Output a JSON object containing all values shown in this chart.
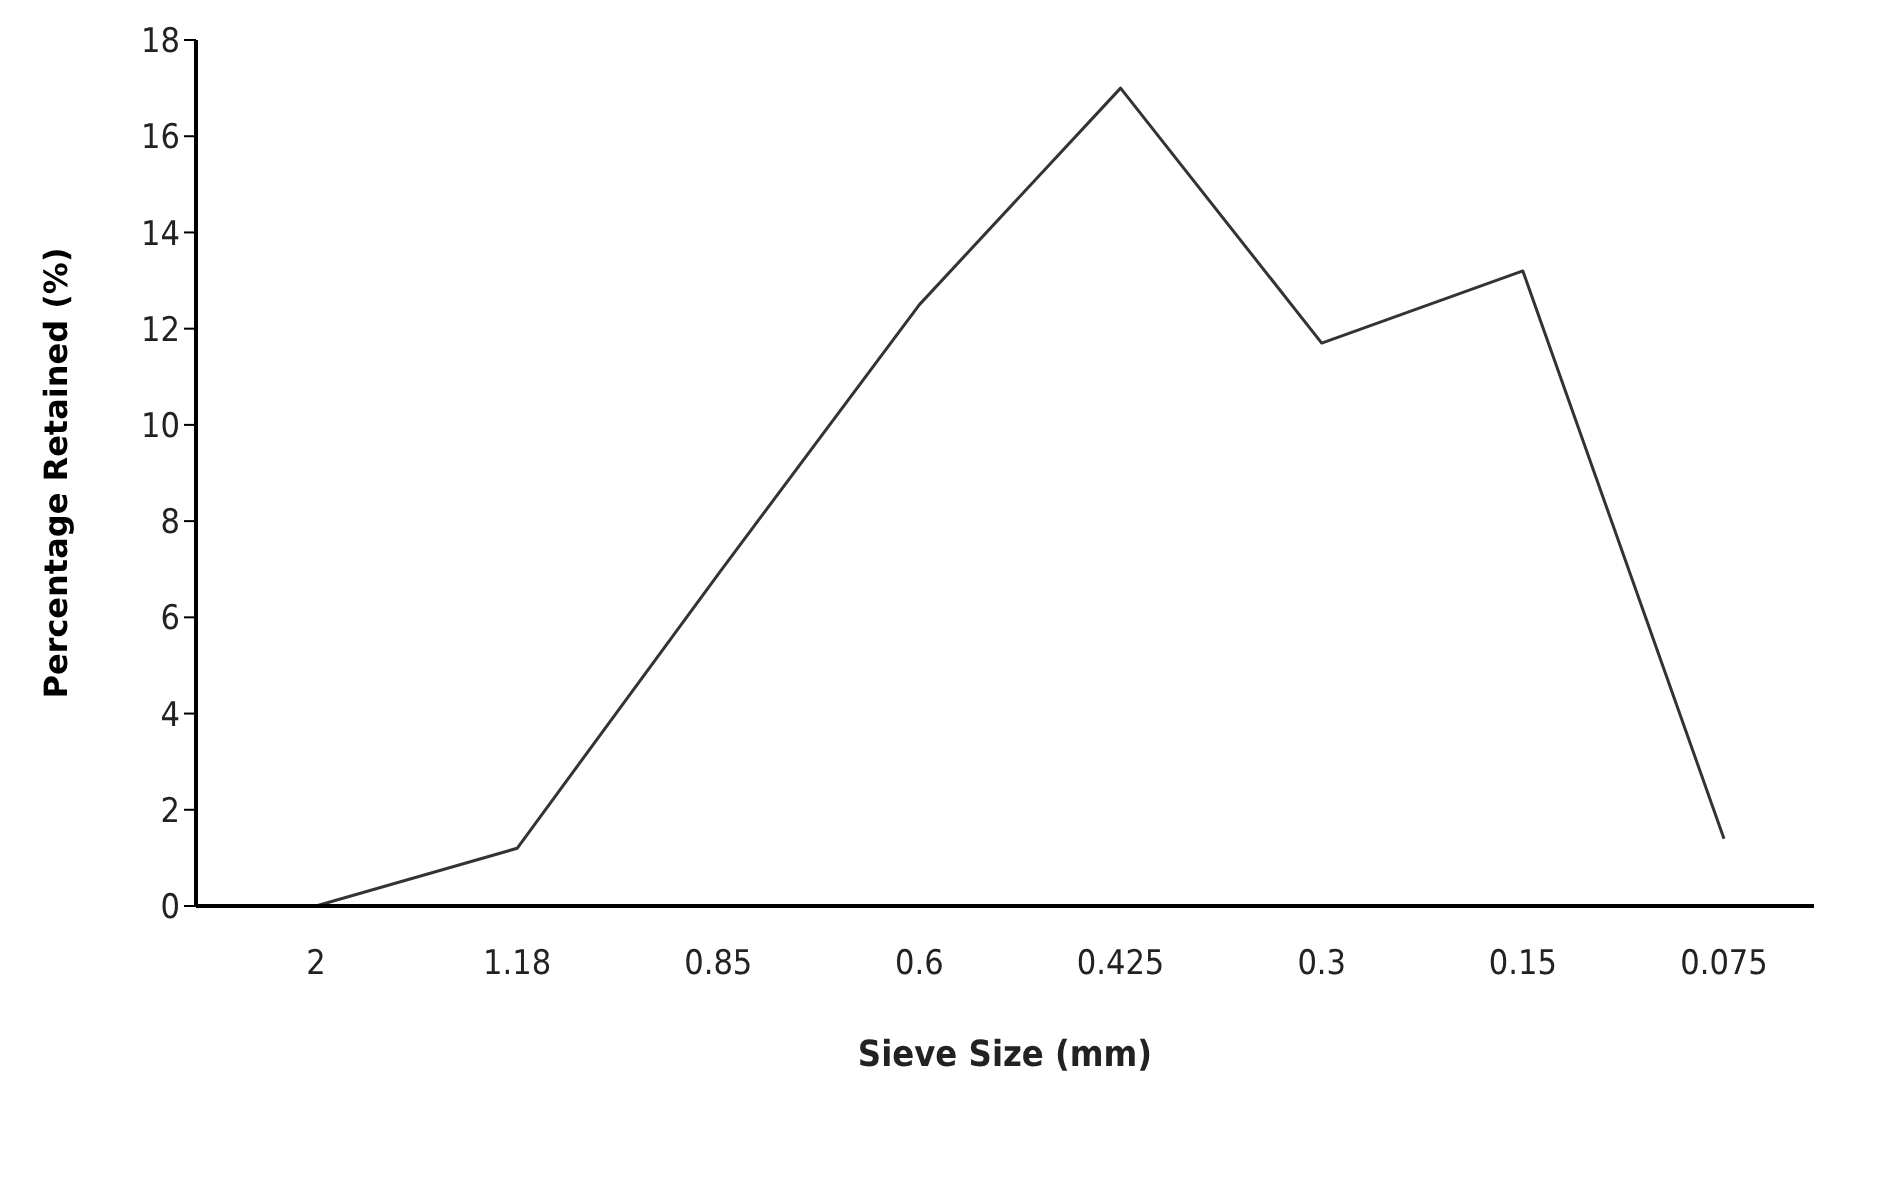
{
  "chart_data": {
    "type": "line",
    "xlabel": "Sieve Size (mm)",
    "ylabel": "Percentage Retained (%)",
    "categories": [
      "2",
      "1.18",
      "0.85",
      "0.6",
      "0.425",
      "0.3",
      "0.15",
      "0.075"
    ],
    "series": [
      {
        "color": "#333333",
        "values": [
          0,
          1.2,
          6.9,
          12.5,
          17,
          11.7,
          13.2,
          1.4
        ]
      }
    ],
    "ylim": [
      0,
      18
    ],
    "yticks": [
      0,
      2,
      4,
      6,
      8,
      10,
      12,
      14,
      16,
      18
    ],
    "grid": false,
    "legend": false,
    "marker": "none",
    "line_style": "solid"
  }
}
